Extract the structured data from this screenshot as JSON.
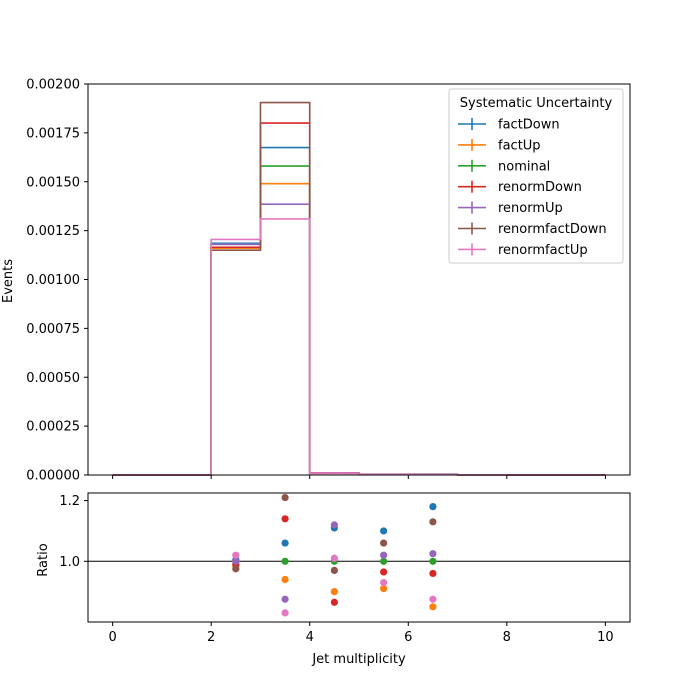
{
  "chart_data": [
    {
      "type": "line",
      "subtype": "step-histogram",
      "ylabel": "Events",
      "xlim": [
        -0.5,
        10.5
      ],
      "ylim": [
        0,
        0.002
      ],
      "yticks": [
        0,
        0.00025,
        0.0005,
        0.00075,
        0.001,
        0.00125,
        0.0015,
        0.00175,
        0.002
      ],
      "ytick_labels": [
        "0.00000",
        "0.00025",
        "0.00050",
        "0.00075",
        "0.00100",
        "0.00125",
        "0.00150",
        "0.00175",
        "0.00200"
      ],
      "bin_edges": [
        0,
        1,
        2,
        3,
        4,
        5,
        6,
        7,
        8,
        9,
        10
      ],
      "legend": {
        "title": "Systematic Uncertainty",
        "placement": "top-right"
      },
      "series": [
        {
          "name": "factDown",
          "color": "#1f77b4",
          "values": [
            0,
            0,
            0.001185,
            0.001675,
            1.1e-05,
            4e-06,
            4e-06,
            1e-06,
            0,
            0
          ]
        },
        {
          "name": "factUp",
          "color": "#ff7f0e",
          "values": [
            0,
            0,
            0.00116,
            0.00149,
            9e-06,
            3e-06,
            3e-06,
            8e-07,
            0,
            0
          ]
        },
        {
          "name": "nominal",
          "color": "#2ca02c",
          "values": [
            0,
            0,
            0.00118,
            0.00158,
            1e-05,
            3e-06,
            3e-06,
            1e-06,
            0,
            0
          ]
        },
        {
          "name": "renormDown",
          "color": "#d62728",
          "values": [
            0,
            0,
            0.001165,
            0.0018,
            8.5e-06,
            2.9e-06,
            2.9e-06,
            9e-07,
            0,
            0
          ]
        },
        {
          "name": "renormUp",
          "color": "#9467bd",
          "values": [
            0,
            0,
            0.00118,
            0.001385,
            1.12e-05,
            3e-06,
            3e-06,
            1e-06,
            0,
            0
          ]
        },
        {
          "name": "renormfactDown",
          "color": "#8c564b",
          "values": [
            0,
            0,
            0.00115,
            0.001905,
            9.7e-06,
            3.2e-06,
            3.4e-06,
            1.1e-06,
            0,
            0
          ]
        },
        {
          "name": "renormfactUp",
          "color": "#e377c2",
          "values": [
            0,
            0,
            0.001205,
            0.00131,
            1.01e-05,
            2.8e-06,
            2.6e-06,
            9e-07,
            0,
            0
          ]
        }
      ]
    },
    {
      "type": "scatter",
      "xlabel": "Jet multiplicity",
      "ylabel": "Ratio",
      "xlim": [
        -0.5,
        10.5
      ],
      "ylim": [
        0.8,
        1.225
      ],
      "xticks": [
        0,
        2,
        4,
        6,
        8,
        10
      ],
      "xtick_labels": [
        "0",
        "2",
        "4",
        "6",
        "8",
        "10"
      ],
      "yticks": [
        1.0,
        1.2
      ],
      "ytick_labels": [
        "1.0",
        "1.2"
      ],
      "reference_line": 1.0,
      "x": [
        2.5,
        3.5,
        4.5,
        5.5,
        6.5
      ],
      "series": [
        {
          "name": "factDown",
          "color": "#1f77b4",
          "values": [
            1.005,
            1.06,
            1.11,
            1.1,
            1.18
          ]
        },
        {
          "name": "factUp",
          "color": "#ff7f0e",
          "values": [
            0.985,
            0.94,
            0.9,
            0.91,
            0.85
          ]
        },
        {
          "name": "nominal",
          "color": "#2ca02c",
          "values": [
            1.0,
            1.0,
            1.0,
            1.0,
            1.0
          ]
        },
        {
          "name": "renormDown",
          "color": "#d62728",
          "values": [
            0.99,
            1.14,
            0.865,
            0.965,
            0.96
          ]
        },
        {
          "name": "renormUp",
          "color": "#9467bd",
          "values": [
            1.0,
            0.875,
            1.12,
            1.02,
            1.025
          ]
        },
        {
          "name": "renormfactDown",
          "color": "#8c564b",
          "values": [
            0.975,
            1.21,
            0.97,
            1.06,
            1.13
          ]
        },
        {
          "name": "renormfactUp",
          "color": "#e377c2",
          "values": [
            1.02,
            0.83,
            1.01,
            0.93,
            0.875
          ]
        }
      ]
    }
  ]
}
